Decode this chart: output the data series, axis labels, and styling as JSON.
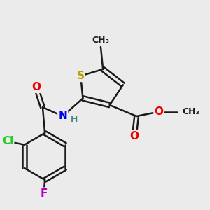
{
  "bg_color": "#ebebeb",
  "bond_color": "#1a1a1a",
  "bond_width": 1.8,
  "atom_colors": {
    "S": "#b8a000",
    "N": "#0000ee",
    "O": "#ee0000",
    "Cl": "#22cc22",
    "F": "#bb00bb",
    "C": "#1a1a1a",
    "H": "#448888"
  },
  "font_size": 11,
  "fig_size": [
    3.0,
    3.0
  ],
  "dpi": 100
}
